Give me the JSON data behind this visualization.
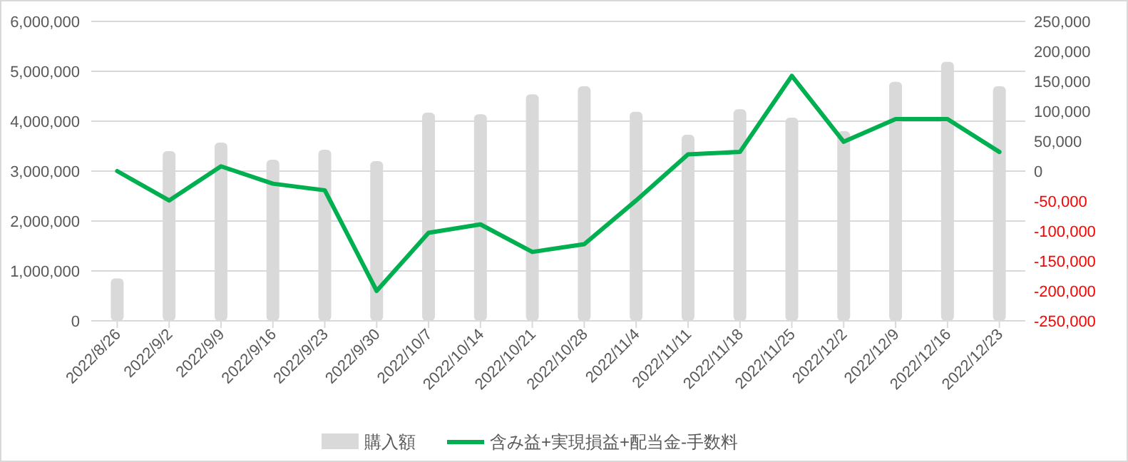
{
  "chart_data": {
    "type": "bar",
    "categories": [
      "2022/8/26",
      "2022/9/2",
      "2022/9/9",
      "2022/9/16",
      "2022/9/23",
      "2022/9/30",
      "2022/10/7",
      "2022/10/14",
      "2022/10/21",
      "2022/10/28",
      "2022/11/4",
      "2022/11/11",
      "2022/11/18",
      "2022/11/25",
      "2022/12/2",
      "2022/12/9",
      "2022/12/16",
      "2022/12/23"
    ],
    "series": [
      {
        "name": "購入額",
        "color": "#d9d9d9",
        "values": [
          850000,
          3400000,
          3570000,
          3230000,
          3430000,
          3200000,
          4170000,
          4140000,
          4540000,
          4700000,
          4190000,
          3730000,
          4240000,
          4070000,
          3800000,
          4790000,
          5190000,
          4700000
        ]
      },
      {
        "name": "含み益+実現損益+配当金-手数料",
        "type": "line",
        "axis": "y2",
        "color": "#00b050",
        "values": [
          0,
          -49000,
          8000,
          -21000,
          -32000,
          -200000,
          -103000,
          -89000,
          -135000,
          -122000,
          -49000,
          28000,
          32000,
          159000,
          49000,
          87000,
          87000,
          32000
        ]
      }
    ],
    "ylim": [
      0,
      6000000
    ],
    "yticks": [
      {
        "value": 0,
        "label": "0"
      },
      {
        "value": 1000000,
        "label": "1,000,000"
      },
      {
        "value": 2000000,
        "label": "2,000,000"
      },
      {
        "value": 3000000,
        "label": "3,000,000"
      },
      {
        "value": 4000000,
        "label": "4,000,000"
      },
      {
        "value": 5000000,
        "label": "5,000,000"
      },
      {
        "value": 6000000,
        "label": "6,000,000"
      }
    ],
    "y2lim": [
      -250000,
      250000
    ],
    "y2ticks": [
      {
        "value": -250000,
        "label": "-250,000"
      },
      {
        "value": -200000,
        "label": "-200,000"
      },
      {
        "value": -150000,
        "label": "-150,000"
      },
      {
        "value": -100000,
        "label": "-100,000"
      },
      {
        "value": -50000,
        "label": "-50,000"
      },
      {
        "value": 0,
        "label": "0"
      },
      {
        "value": 50000,
        "label": "50,000"
      },
      {
        "value": 100000,
        "label": "100,000"
      },
      {
        "value": 150000,
        "label": "150,000"
      },
      {
        "value": 200000,
        "label": "200,000"
      },
      {
        "value": 250000,
        "label": "250,000"
      }
    ],
    "grid": "y",
    "legend": "bottom",
    "marker": "none",
    "line_style": "solid"
  }
}
